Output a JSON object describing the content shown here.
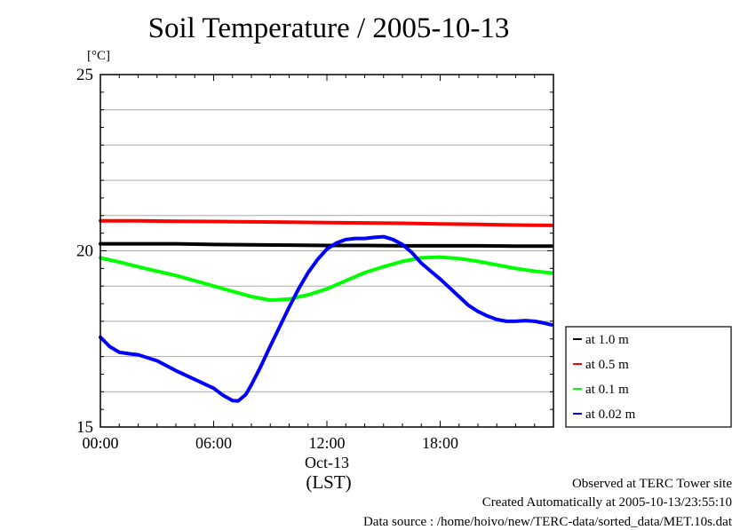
{
  "chart_data": {
    "type": "line",
    "title": "Soil Temperature / 2005-10-13",
    "ylabel": "[°C]",
    "xlabel": "(LST)",
    "date_label": "Oct-13",
    "ylim": [
      15,
      25
    ],
    "xlim_hours": [
      0,
      24
    ],
    "yticks": [
      "15",
      "20",
      "25"
    ],
    "xticks": [
      {
        "hour": 0,
        "label": "00:00"
      },
      {
        "hour": 6,
        "label": "06:00"
      },
      {
        "hour": 12,
        "label": "12:00"
      },
      {
        "hour": 18,
        "label": "18:00"
      }
    ],
    "grid": true,
    "legend_position": "right",
    "series": [
      {
        "name": "at 1.0 m",
        "color": "#000000",
        "x": [
          0,
          2,
          4,
          6,
          8,
          10,
          12,
          14,
          16,
          18,
          20,
          22,
          23.9
        ],
        "y": [
          20.2,
          20.2,
          20.2,
          20.18,
          20.17,
          20.16,
          20.15,
          20.15,
          20.14,
          20.14,
          20.14,
          20.13,
          20.13
        ]
      },
      {
        "name": "at 0.5 m",
        "color": "#ff0000",
        "x": [
          0,
          2,
          4,
          6,
          8,
          10,
          12,
          14,
          16,
          18,
          20,
          22,
          23.9
        ],
        "y": [
          20.85,
          20.85,
          20.84,
          20.83,
          20.82,
          20.81,
          20.8,
          20.79,
          20.78,
          20.76,
          20.75,
          20.73,
          20.72
        ]
      },
      {
        "name": "at 0.1 m",
        "color": "#00ff00",
        "x": [
          0,
          1,
          2,
          3,
          4,
          5,
          6,
          7,
          8,
          9,
          10,
          11,
          12,
          13,
          14,
          15,
          16,
          17,
          18,
          19,
          20,
          21,
          22,
          23,
          23.9
        ],
        "y": [
          19.8,
          19.68,
          19.55,
          19.42,
          19.3,
          19.15,
          19.0,
          18.85,
          18.7,
          18.6,
          18.63,
          18.75,
          18.92,
          19.15,
          19.38,
          19.55,
          19.7,
          19.8,
          19.82,
          19.78,
          19.7,
          19.6,
          19.5,
          19.42,
          19.37
        ]
      },
      {
        "name": "at 0.02 m",
        "color": "#0000ff",
        "x": [
          0,
          0.5,
          1,
          1.5,
          2,
          3,
          4,
          5,
          6,
          6.5,
          7,
          7.3,
          7.7,
          8,
          8.5,
          9,
          9.5,
          10,
          10.5,
          11,
          11.5,
          12,
          12.5,
          13,
          13.5,
          14,
          14.5,
          15,
          15.5,
          16,
          16.5,
          17,
          17.5,
          18,
          18.5,
          19,
          19.5,
          20,
          20.5,
          21,
          21.5,
          22,
          22.5,
          23,
          23.5,
          23.9
        ],
        "y": [
          17.55,
          17.28,
          17.12,
          17.08,
          17.05,
          16.88,
          16.6,
          16.35,
          16.1,
          15.9,
          15.75,
          15.74,
          15.92,
          16.2,
          16.72,
          17.3,
          17.85,
          18.4,
          18.92,
          19.38,
          19.75,
          20.05,
          20.22,
          20.32,
          20.35,
          20.35,
          20.38,
          20.4,
          20.32,
          20.18,
          19.95,
          19.65,
          19.42,
          19.2,
          18.95,
          18.7,
          18.45,
          18.28,
          18.15,
          18.05,
          18.0,
          18.0,
          18.02,
          18.0,
          17.95,
          17.9
        ]
      }
    ]
  },
  "footer": {
    "observed": "Observed at TERC Tower site",
    "created": "Created Automatically at 2005-10-13/23:55:10",
    "source": "Data source : /home/hoivo/new/TERC-data/sorted_data/MET.10s.dat"
  }
}
